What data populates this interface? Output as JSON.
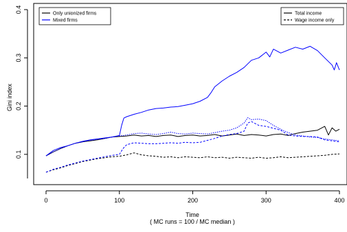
{
  "chart_data": {
    "type": "line",
    "xlabel": "Time",
    "subtitle": "( MC runs = 100 / MC median  )",
    "ylabel": "Gini index",
    "xlim": [
      0,
      400
    ],
    "ylim": [
      0,
      0.4
    ],
    "x_ticks": [
      "0",
      "100",
      "200",
      "300",
      "400"
    ],
    "y_ticks": [
      "0.1",
      "0.2",
      "0.3",
      "0.4"
    ],
    "legend_left": {
      "position": "top-left",
      "entries": [
        {
          "label": "Only unionized firms",
          "color": "#000000"
        },
        {
          "label": "Mixed firms",
          "color": "#0000ff"
        }
      ]
    },
    "legend_right": {
      "position": "top-right",
      "entries": [
        {
          "label": "Total income",
          "dash": "solid"
        },
        {
          "label": "Wage income only",
          "dash": "dashed"
        }
      ]
    },
    "series": [
      {
        "name": "Only unionized firms — Total income",
        "color": "#000000",
        "dash": "solid",
        "points": [
          [
            0,
            0.097
          ],
          [
            10,
            0.105
          ],
          [
            20,
            0.112
          ],
          [
            30,
            0.118
          ],
          [
            40,
            0.123
          ],
          [
            50,
            0.126
          ],
          [
            60,
            0.128
          ],
          [
            70,
            0.13
          ],
          [
            80,
            0.133
          ],
          [
            90,
            0.136
          ],
          [
            100,
            0.137
          ],
          [
            110,
            0.138
          ],
          [
            120,
            0.14
          ],
          [
            130,
            0.138
          ],
          [
            140,
            0.139
          ],
          [
            150,
            0.137
          ],
          [
            160,
            0.139
          ],
          [
            170,
            0.14
          ],
          [
            180,
            0.137
          ],
          [
            190,
            0.139
          ],
          [
            200,
            0.14
          ],
          [
            210,
            0.138
          ],
          [
            220,
            0.139
          ],
          [
            230,
            0.141
          ],
          [
            240,
            0.138
          ],
          [
            250,
            0.14
          ],
          [
            260,
            0.142
          ],
          [
            270,
            0.139
          ],
          [
            280,
            0.141
          ],
          [
            290,
            0.14
          ],
          [
            300,
            0.138
          ],
          [
            310,
            0.141
          ],
          [
            320,
            0.142
          ],
          [
            330,
            0.139
          ],
          [
            340,
            0.143
          ],
          [
            350,
            0.146
          ],
          [
            360,
            0.148
          ],
          [
            370,
            0.15
          ],
          [
            380,
            0.158
          ],
          [
            385,
            0.14
          ],
          [
            390,
            0.155
          ],
          [
            395,
            0.148
          ],
          [
            400,
            0.152
          ]
        ]
      },
      {
        "name": "Only unionized firms — Wage income only",
        "color": "#000000",
        "dash": "dashed",
        "points": [
          [
            0,
            0.063
          ],
          [
            10,
            0.068
          ],
          [
            20,
            0.072
          ],
          [
            30,
            0.077
          ],
          [
            40,
            0.081
          ],
          [
            50,
            0.085
          ],
          [
            60,
            0.088
          ],
          [
            70,
            0.091
          ],
          [
            80,
            0.093
          ],
          [
            90,
            0.095
          ],
          [
            100,
            0.096
          ],
          [
            110,
            0.099
          ],
          [
            120,
            0.103
          ],
          [
            130,
            0.099
          ],
          [
            140,
            0.097
          ],
          [
            150,
            0.096
          ],
          [
            160,
            0.094
          ],
          [
            170,
            0.095
          ],
          [
            180,
            0.093
          ],
          [
            190,
            0.095
          ],
          [
            200,
            0.094
          ],
          [
            210,
            0.093
          ],
          [
            220,
            0.095
          ],
          [
            230,
            0.093
          ],
          [
            240,
            0.094
          ],
          [
            250,
            0.092
          ],
          [
            260,
            0.094
          ],
          [
            270,
            0.093
          ],
          [
            280,
            0.092
          ],
          [
            290,
            0.094
          ],
          [
            300,
            0.092
          ],
          [
            310,
            0.093
          ],
          [
            320,
            0.095
          ],
          [
            330,
            0.093
          ],
          [
            340,
            0.094
          ],
          [
            350,
            0.095
          ],
          [
            360,
            0.096
          ],
          [
            370,
            0.097
          ],
          [
            380,
            0.098
          ],
          [
            390,
            0.1
          ],
          [
            400,
            0.101
          ]
        ]
      },
      {
        "name": "Mixed firms — Total income",
        "color": "#0000ff",
        "dash": "solid",
        "points": [
          [
            0,
            0.097
          ],
          [
            10,
            0.108
          ],
          [
            20,
            0.114
          ],
          [
            30,
            0.118
          ],
          [
            40,
            0.123
          ],
          [
            50,
            0.127
          ],
          [
            60,
            0.13
          ],
          [
            70,
            0.132
          ],
          [
            80,
            0.134
          ],
          [
            90,
            0.136
          ],
          [
            100,
            0.139
          ],
          [
            103,
            0.16
          ],
          [
            106,
            0.175
          ],
          [
            110,
            0.178
          ],
          [
            120,
            0.183
          ],
          [
            130,
            0.187
          ],
          [
            140,
            0.192
          ],
          [
            150,
            0.195
          ],
          [
            160,
            0.196
          ],
          [
            170,
            0.198
          ],
          [
            180,
            0.199
          ],
          [
            190,
            0.202
          ],
          [
            200,
            0.205
          ],
          [
            210,
            0.21
          ],
          [
            220,
            0.218
          ],
          [
            225,
            0.228
          ],
          [
            230,
            0.24
          ],
          [
            240,
            0.252
          ],
          [
            250,
            0.262
          ],
          [
            260,
            0.27
          ],
          [
            270,
            0.28
          ],
          [
            280,
            0.295
          ],
          [
            290,
            0.3
          ],
          [
            300,
            0.312
          ],
          [
            305,
            0.302
          ],
          [
            310,
            0.318
          ],
          [
            320,
            0.31
          ],
          [
            330,
            0.316
          ],
          [
            340,
            0.322
          ],
          [
            350,
            0.318
          ],
          [
            360,
            0.324
          ],
          [
            370,
            0.315
          ],
          [
            380,
            0.3
          ],
          [
            390,
            0.285
          ],
          [
            393,
            0.275
          ],
          [
            396,
            0.29
          ],
          [
            400,
            0.275
          ]
        ]
      },
      {
        "name": "Mixed firms — Wage income only",
        "color": "#0000ff",
        "dash": "dashed",
        "points": [
          [
            0,
            0.063
          ],
          [
            10,
            0.069
          ],
          [
            20,
            0.073
          ],
          [
            30,
            0.078
          ],
          [
            40,
            0.082
          ],
          [
            50,
            0.086
          ],
          [
            60,
            0.089
          ],
          [
            70,
            0.092
          ],
          [
            80,
            0.095
          ],
          [
            90,
            0.098
          ],
          [
            100,
            0.1
          ],
          [
            105,
            0.112
          ],
          [
            110,
            0.12
          ],
          [
            120,
            0.124
          ],
          [
            130,
            0.123
          ],
          [
            140,
            0.122
          ],
          [
            150,
            0.122
          ],
          [
            160,
            0.123
          ],
          [
            170,
            0.124
          ],
          [
            180,
            0.123
          ],
          [
            190,
            0.125
          ],
          [
            200,
            0.124
          ],
          [
            210,
            0.125
          ],
          [
            220,
            0.129
          ],
          [
            230,
            0.133
          ],
          [
            240,
            0.138
          ],
          [
            250,
            0.141
          ],
          [
            260,
            0.143
          ],
          [
            270,
            0.148
          ],
          [
            275,
            0.165
          ],
          [
            280,
            0.168
          ],
          [
            290,
            0.16
          ],
          [
            300,
            0.158
          ],
          [
            310,
            0.154
          ],
          [
            320,
            0.15
          ],
          [
            330,
            0.14
          ],
          [
            340,
            0.138
          ],
          [
            350,
            0.137
          ],
          [
            360,
            0.137
          ],
          [
            370,
            0.136
          ],
          [
            380,
            0.13
          ],
          [
            390,
            0.128
          ],
          [
            400,
            0.126
          ]
        ]
      },
      {
        "name": "Mixed firms — Total income (dotted)",
        "color": "#0000ff",
        "dash": "dotted",
        "points": [
          [
            0,
            0.097
          ],
          [
            10,
            0.105
          ],
          [
            20,
            0.112
          ],
          [
            30,
            0.118
          ],
          [
            40,
            0.123
          ],
          [
            50,
            0.126
          ],
          [
            60,
            0.129
          ],
          [
            70,
            0.131
          ],
          [
            80,
            0.133
          ],
          [
            90,
            0.136
          ],
          [
            100,
            0.138
          ],
          [
            110,
            0.14
          ],
          [
            120,
            0.143
          ],
          [
            130,
            0.144
          ],
          [
            140,
            0.142
          ],
          [
            150,
            0.141
          ],
          [
            160,
            0.143
          ],
          [
            170,
            0.146
          ],
          [
            180,
            0.143
          ],
          [
            190,
            0.142
          ],
          [
            200,
            0.144
          ],
          [
            210,
            0.143
          ],
          [
            220,
            0.142
          ],
          [
            230,
            0.145
          ],
          [
            240,
            0.148
          ],
          [
            250,
            0.15
          ],
          [
            260,
            0.155
          ],
          [
            270,
            0.165
          ],
          [
            275,
            0.176
          ],
          [
            280,
            0.172
          ],
          [
            290,
            0.173
          ],
          [
            300,
            0.17
          ],
          [
            310,
            0.16
          ],
          [
            320,
            0.152
          ],
          [
            330,
            0.145
          ],
          [
            340,
            0.14
          ],
          [
            350,
            0.138
          ],
          [
            360,
            0.136
          ],
          [
            370,
            0.135
          ],
          [
            380,
            0.132
          ],
          [
            390,
            0.13
          ],
          [
            400,
            0.128
          ]
        ]
      }
    ]
  }
}
